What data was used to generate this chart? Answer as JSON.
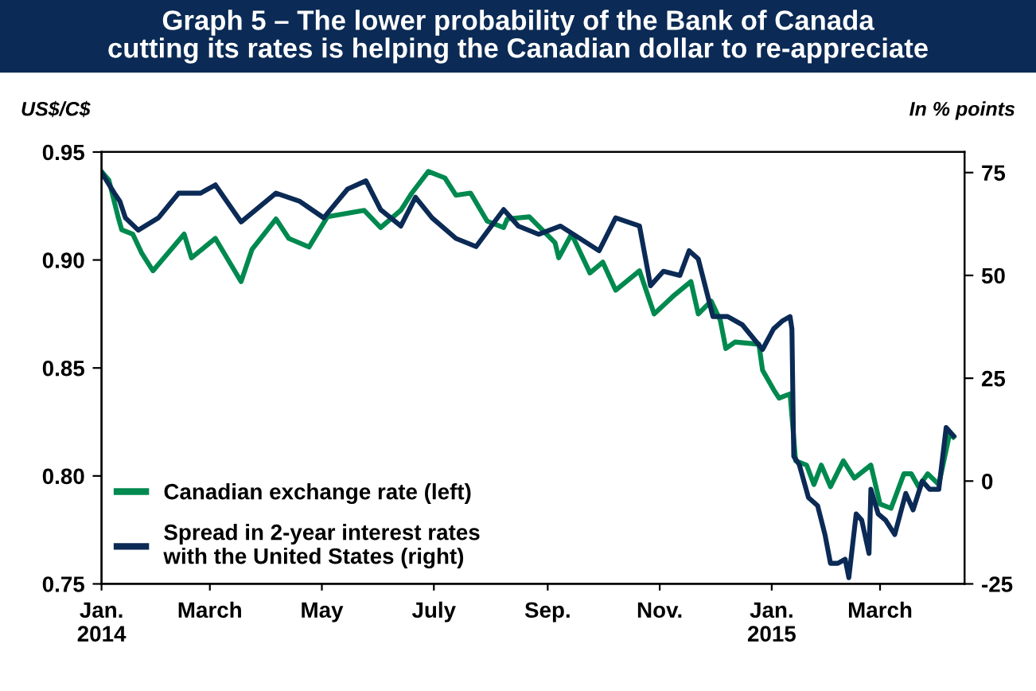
{
  "chart_data": {
    "type": "line",
    "title": "Graph 5 – The lower probability of the Bank of Canada\ncutting its rates is helping the Canadian dollar to re-appreciate",
    "ylabel": "US$/C$",
    "y2label": "In % points",
    "xlim": [
      "2014-01-01",
      "2015-04-16"
    ],
    "xticks": [
      {
        "value": "2014-01-01",
        "label": "Jan.\n2014"
      },
      {
        "value": "2014-03-01",
        "label": "March"
      },
      {
        "value": "2014-05-01",
        "label": "May"
      },
      {
        "value": "2014-07-01",
        "label": "July"
      },
      {
        "value": "2014-09-01",
        "label": "Sep."
      },
      {
        "value": "2014-11-01",
        "label": "Nov."
      },
      {
        "value": "2015-01-01",
        "label": "Jan.\n2015"
      },
      {
        "value": "2015-03-01",
        "label": "March"
      }
    ],
    "ylim": [
      0.75,
      0.95
    ],
    "yticks": [
      {
        "value": 0.75,
        "label": "0.75"
      },
      {
        "value": 0.8,
        "label": "0.80"
      },
      {
        "value": 0.85,
        "label": "0.85"
      },
      {
        "value": 0.9,
        "label": "0.90"
      },
      {
        "value": 0.95,
        "label": "0.95"
      }
    ],
    "y2lim": [
      -25,
      80
    ],
    "y2ticks": [
      -25,
      0,
      25,
      50,
      75
    ],
    "legend": "bottom left",
    "grid": false,
    "series": [
      {
        "name": "Canadian exchange rate (left)",
        "color": "#00894f",
        "x": [
          "2014-01-01",
          "2014-01-05",
          "2014-01-10",
          "2014-01-12",
          "2014-01-18",
          "2014-01-23",
          "2014-01-29",
          "2014-02-15",
          "2014-02-19",
          "2014-03-04",
          "2014-03-18",
          "2014-03-24",
          "2014-04-06",
          "2014-04-13",
          "2014-04-24",
          "2014-05-04",
          "2014-05-24",
          "2014-06-02",
          "2014-06-13",
          "2014-06-19",
          "2014-06-28",
          "2014-07-07",
          "2014-07-13",
          "2014-07-21",
          "2014-07-30",
          "2014-08-08",
          "2014-08-10",
          "2014-08-22",
          "2014-09-05",
          "2014-09-07",
          "2014-09-14",
          "2014-09-24",
          "2014-10-01",
          "2014-10-08",
          "2014-10-21",
          "2014-10-29",
          "2014-11-08",
          "2014-11-18",
          "2014-11-22",
          "2014-11-29",
          "2014-12-04",
          "2014-12-07",
          "2014-12-12",
          "2014-12-25",
          "2014-12-27",
          "2015-01-02",
          "2015-01-05",
          "2015-01-11",
          "2015-01-14",
          "2015-01-20",
          "2015-01-24",
          "2015-01-28",
          "2015-02-02",
          "2015-02-09",
          "2015-02-15",
          "2015-02-24",
          "2015-03-01",
          "2015-03-07",
          "2015-03-14",
          "2015-03-18",
          "2015-03-22",
          "2015-03-27",
          "2015-04-02",
          "2015-04-08",
          "2015-04-10"
        ],
        "values": [
          0.941,
          0.937,
          0.92,
          0.914,
          0.912,
          0.903,
          0.895,
          0.912,
          0.901,
          0.91,
          0.89,
          0.905,
          0.919,
          0.91,
          0.906,
          0.92,
          0.923,
          0.915,
          0.923,
          0.931,
          0.941,
          0.938,
          0.93,
          0.931,
          0.918,
          0.915,
          0.919,
          0.92,
          0.908,
          0.901,
          0.912,
          0.894,
          0.899,
          0.886,
          0.895,
          0.875,
          0.883,
          0.89,
          0.875,
          0.881,
          0.872,
          0.859,
          0.862,
          0.861,
          0.849,
          0.84,
          0.836,
          0.838,
          0.807,
          0.805,
          0.796,
          0.805,
          0.795,
          0.807,
          0.799,
          0.805,
          0.787,
          0.785,
          0.801,
          0.801,
          0.795,
          0.801,
          0.796,
          0.82,
          0.818
        ]
      },
      {
        "name": "Spread in 2-year interest rates\nwith the United States (right)",
        "color": "#0b2a55",
        "axis": "y2",
        "x": [
          "2014-01-01",
          "2014-01-08",
          "2014-01-11",
          "2014-01-14",
          "2014-01-21",
          "2014-02-01",
          "2014-02-12",
          "2014-02-24",
          "2014-03-04",
          "2014-03-18",
          "2014-04-06",
          "2014-04-19",
          "2014-05-02",
          "2014-05-15",
          "2014-05-25",
          "2014-06-02",
          "2014-06-13",
          "2014-06-21",
          "2014-06-30",
          "2014-07-13",
          "2014-07-24",
          "2014-08-08",
          "2014-08-16",
          "2014-08-27",
          "2014-09-08",
          "2014-09-29",
          "2014-10-08",
          "2014-10-21",
          "2014-10-27",
          "2014-11-03",
          "2014-11-12",
          "2014-11-17",
          "2014-11-22",
          "2014-11-30",
          "2014-12-08",
          "2014-12-16",
          "2014-12-27",
          "2015-01-02",
          "2015-01-07",
          "2015-01-11",
          "2015-01-12",
          "2015-01-13",
          "2015-01-16",
          "2015-01-21",
          "2015-01-26",
          "2015-01-30",
          "2015-02-02",
          "2015-02-06",
          "2015-02-10",
          "2015-02-12",
          "2015-02-16",
          "2015-02-19",
          "2015-02-23",
          "2015-02-24",
          "2015-02-28",
          "2015-03-04",
          "2015-03-09",
          "2015-03-15",
          "2015-03-19",
          "2015-03-24",
          "2015-03-28",
          "2015-04-02",
          "2015-04-06",
          "2015-04-10"
        ],
        "values": [
          75,
          70,
          68,
          64,
          61,
          64,
          70,
          70,
          72,
          63,
          70,
          68,
          64,
          71,
          73,
          66,
          62,
          69,
          64,
          59,
          57,
          66,
          62,
          60,
          62,
          56,
          64,
          62,
          47.5,
          51,
          50,
          56,
          54,
          40,
          40,
          38,
          32,
          37,
          39,
          40,
          37,
          6,
          4,
          -4,
          -6,
          -13,
          -20,
          -20,
          -19,
          -23.5,
          -8,
          -9.5,
          -17.6,
          -2,
          -8,
          -9.5,
          -13,
          -3,
          -7,
          0,
          -2,
          -2,
          13,
          11
        ]
      }
    ]
  }
}
